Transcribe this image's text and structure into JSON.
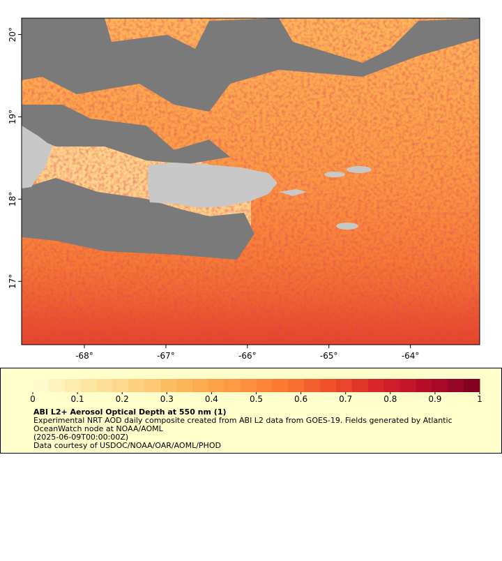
{
  "map": {
    "lonlim": [
      -68.77,
      -63.15
    ],
    "latlim": [
      16.23,
      20.2
    ],
    "lon_ticks": [
      {
        "value": -68,
        "label": "-68°"
      },
      {
        "value": -67,
        "label": "-67°"
      },
      {
        "value": -66,
        "label": "-66°"
      },
      {
        "value": -65,
        "label": "-65°"
      },
      {
        "value": -64,
        "label": "-64°"
      }
    ],
    "lat_ticks": [
      {
        "value": 17,
        "label": "17°"
      },
      {
        "value": 18,
        "label": "18°"
      },
      {
        "value": 19,
        "label": "19°"
      },
      {
        "value": 20,
        "label": "20°"
      }
    ]
  },
  "legend": {
    "lim": [
      0,
      1
    ],
    "ticks": [
      0,
      0.1,
      0.2,
      0.3,
      0.4,
      0.5,
      0.6,
      0.7,
      0.8,
      0.9,
      1
    ],
    "colors": [
      "#ffffd4",
      "#fee9a6",
      "#fdd384",
      "#fdb55a",
      "#fd9a42",
      "#fb7a32",
      "#f0502a",
      "#d9232a",
      "#b30a2a",
      "#7a0020"
    ],
    "title": "ABI L2+ Aerosol Optical Depth at 550 nm (1)",
    "description": [
      "Experimental NRT AOD daily composite created from ABI L2 data from GOES-19. Fields generated by Atlantic",
      "OceanWatch node at NOAA/AOML"
    ],
    "date": "(2025-06-09T00:00:00Z)",
    "credit": "Data courtesy of USDOC/NOAA/OAR/AOML/PHOD"
  }
}
